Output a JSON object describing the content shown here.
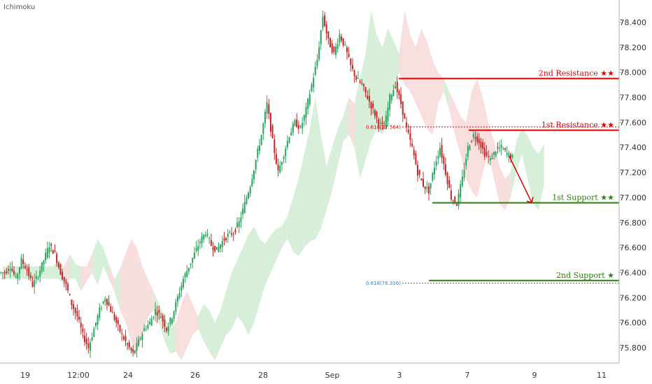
{
  "indicator_label": "Ichimoku",
  "chart_data": {
    "type": "candlestick",
    "y_ticks": [
      "78.400",
      "78.200",
      "78.000",
      "77.800",
      "77.600",
      "77.400",
      "77.200",
      "77.000",
      "76.800",
      "76.600",
      "76.400",
      "76.200",
      "76.000",
      "75.800"
    ],
    "y_tick_values": [
      78.4,
      78.2,
      78.0,
      77.8,
      77.6,
      77.4,
      77.2,
      77.0,
      76.8,
      76.6,
      76.4,
      76.2,
      76.0,
      75.8
    ],
    "ylim": [
      75.7,
      78.55
    ],
    "x_ticks": [
      "19",
      "12:00",
      "24",
      "26",
      "28",
      "Sep",
      "3",
      "7",
      "9",
      "11"
    ],
    "grid": false,
    "close_series": [
      76.4,
      76.45,
      76.35,
      76.5,
      76.42,
      76.3,
      76.38,
      76.5,
      76.62,
      76.55,
      76.4,
      76.3,
      76.15,
      76.05,
      75.9,
      75.8,
      75.95,
      76.1,
      76.2,
      76.1,
      76.0,
      75.9,
      75.82,
      75.75,
      75.85,
      75.95,
      76.0,
      76.1,
      76.05,
      75.95,
      76.05,
      76.2,
      76.35,
      76.45,
      76.55,
      76.65,
      76.72,
      76.62,
      76.58,
      76.65,
      76.7,
      76.72,
      76.8,
      76.95,
      77.1,
      77.3,
      77.5,
      77.75,
      77.45,
      77.2,
      77.35,
      77.5,
      77.6,
      77.55,
      77.7,
      77.9,
      78.1,
      78.45,
      78.25,
      78.15,
      78.3,
      78.2,
      78.05,
      77.95,
      77.9,
      77.8,
      77.7,
      77.6,
      77.55,
      77.8,
      77.9,
      77.75,
      77.55,
      77.4,
      77.2,
      77.1,
      77.05,
      77.25,
      77.4,
      77.2,
      77.0,
      76.95,
      77.15,
      77.4,
      77.5,
      77.45,
      77.35,
      77.3,
      77.38,
      77.4,
      77.35,
      77.32
    ],
    "levels": [
      {
        "name": "2nd Resistance",
        "stars": "★★",
        "value": "77.951",
        "y": 77.951,
        "color": "#e00000",
        "style": "solid"
      },
      {
        "name": "1st Resistance",
        "stars": "★★",
        "value": "77.538",
        "y": 77.538,
        "color": "#e00000",
        "style": "solid"
      },
      {
        "name": "1st Support",
        "stars": "★★",
        "value": "76.958",
        "y": 76.958,
        "color": "#2e7d0e",
        "style": "solid"
      },
      {
        "name": "2nd Support",
        "stars": "★",
        "value": "76.337",
        "y": 76.337,
        "color": "#2e7d0e",
        "style": "solid"
      }
    ],
    "fib_levels": [
      {
        "label": "0.618(77.564)",
        "y": 77.564,
        "color": "#e00000"
      },
      {
        "label": "0.618(76.316)",
        "y": 76.316,
        "color": "#1e88e5"
      }
    ],
    "projection": {
      "from": 77.33,
      "to": 76.96,
      "color": "#e00000"
    },
    "colors": {
      "up": "#26a65b",
      "down": "#c62828",
      "cloud_bull": "#d7efd9",
      "cloud_bear": "#f9dede"
    }
  }
}
